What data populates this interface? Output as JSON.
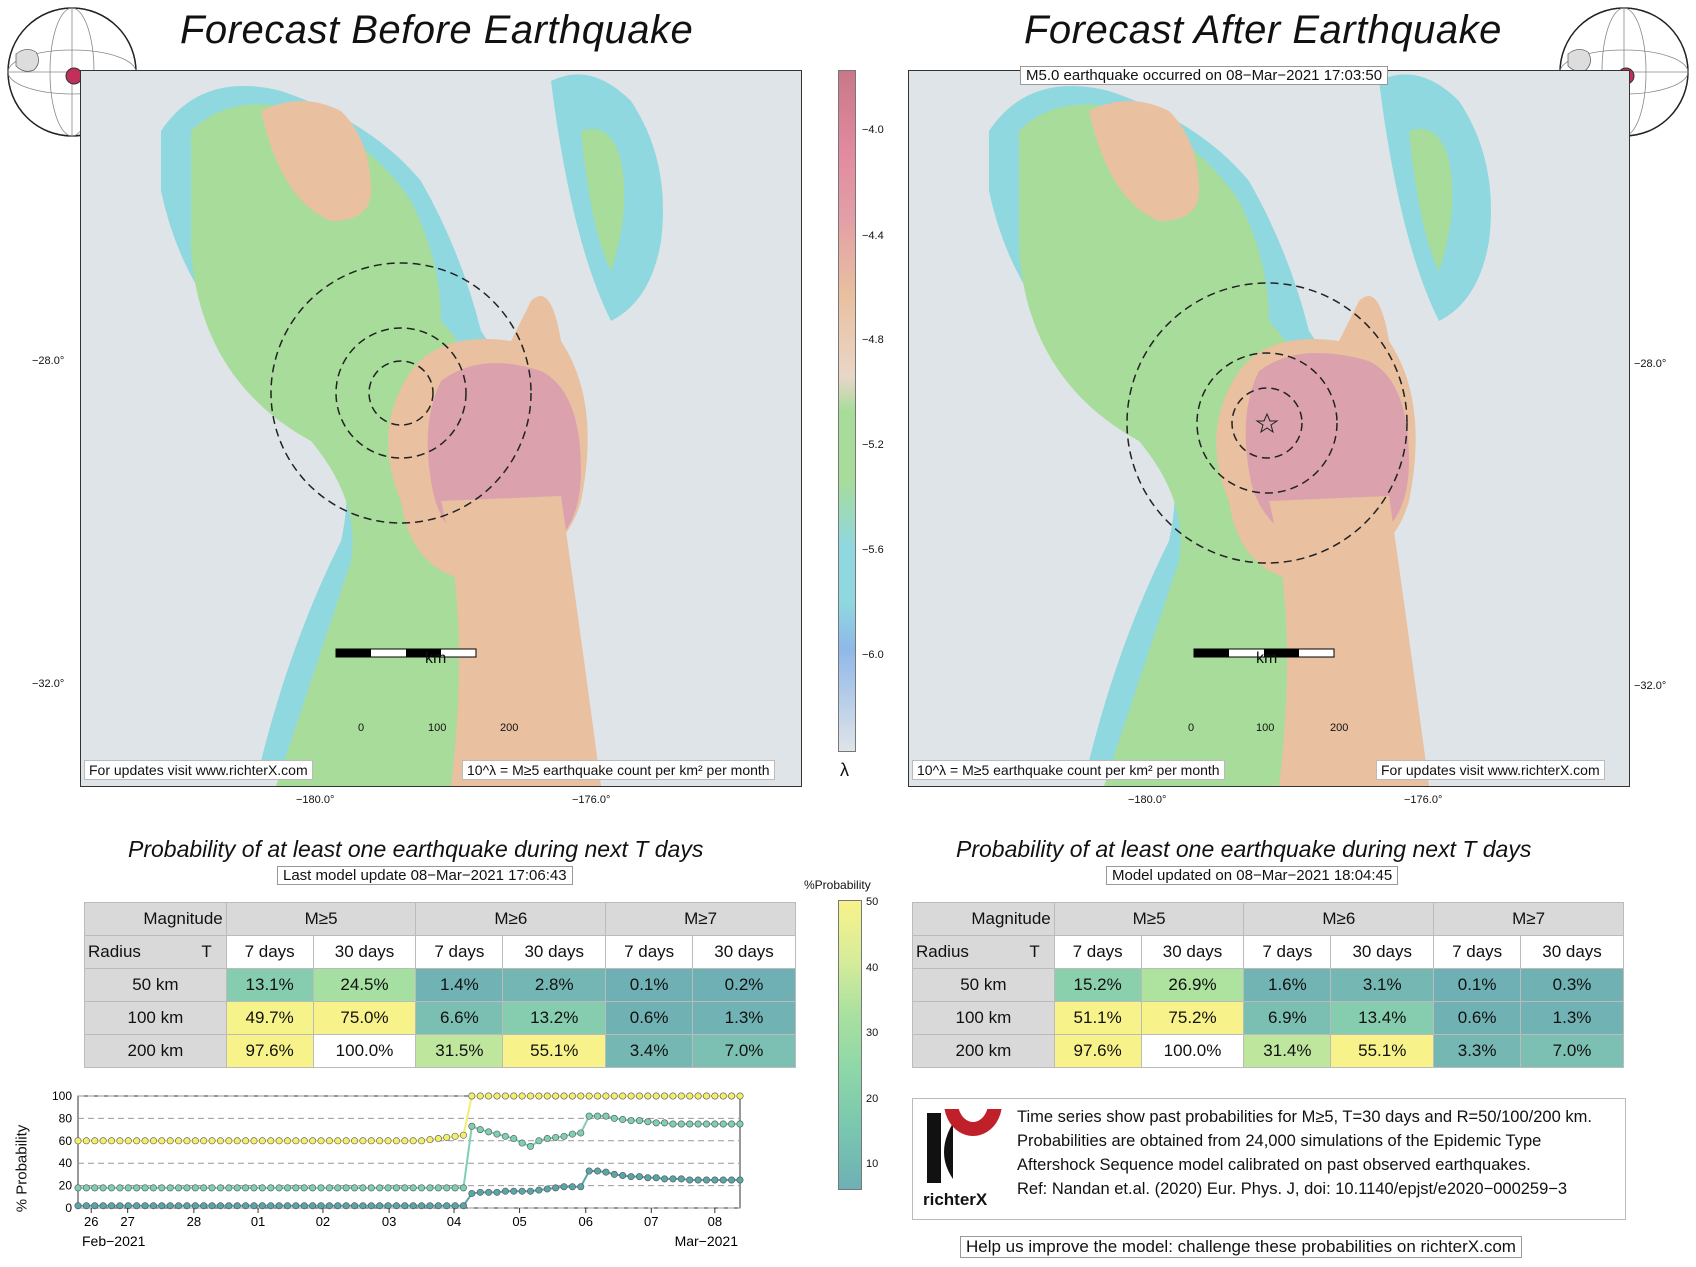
{
  "left_panel": {
    "title": "Forecast Before Earthquake",
    "footer_left": "For updates visit www.richterX.com",
    "footer_right": "10^λ = M≥5 earthquake count per km² per month",
    "scale_label": "km",
    "scale_ticks": [
      "0",
      "100",
      "200"
    ],
    "lat_ticks": [
      "−28.0°",
      "−32.0°"
    ],
    "lon_ticks": [
      "−180.0°",
      "−176.0°"
    ]
  },
  "right_panel": {
    "title": "Forecast After Earthquake",
    "event_label": "M5.0 earthquake occurred on 08−Mar−2021 17:03:50",
    "footer_left": "10^λ = M≥5 earthquake count per km² per month",
    "footer_right": "For updates visit www.richterX.com",
    "scale_label": "km",
    "scale_ticks": [
      "0",
      "100",
      "200"
    ],
    "lat_ticks": [
      "−28.0°",
      "−32.0°"
    ],
    "lon_ticks": [
      "−180.0°",
      "−176.0°"
    ]
  },
  "colorbar": {
    "ticks": [
      "−4.0",
      "−4.4",
      "−4.8",
      "−5.2",
      "−5.6",
      "−6.0"
    ],
    "label": "λ"
  },
  "table_left": {
    "title": "Probability of at least one earthquake during next T days",
    "update": "Last model update 08−Mar−2021 17:06:43",
    "corner_magnitude": "Magnitude",
    "corner_radius": "Radius",
    "corner_t": "T",
    "magnitudes": [
      "M≥5",
      "M≥6",
      "M≥7"
    ],
    "periods": [
      "7 days",
      "30 days",
      "7 days",
      "30 days",
      "7 days",
      "30 days"
    ],
    "radii": [
      "50 km",
      "100 km",
      "200 km"
    ],
    "rows": [
      [
        "13.1%",
        "24.5%",
        "1.4%",
        "2.8%",
        "0.1%",
        "0.2%"
      ],
      [
        "49.7%",
        "75.0%",
        "6.6%",
        "13.2%",
        "0.6%",
        "1.3%"
      ],
      [
        "97.6%",
        "100.0%",
        "31.5%",
        "55.1%",
        "3.4%",
        "7.0%"
      ]
    ]
  },
  "table_right": {
    "title": "Probability of at least one earthquake during next T days",
    "update": "Model updated on 08−Mar−2021 18:04:45",
    "corner_magnitude": "Magnitude",
    "corner_radius": "Radius",
    "corner_t": "T",
    "magnitudes": [
      "M≥5",
      "M≥6",
      "M≥7"
    ],
    "periods": [
      "7 days",
      "30 days",
      "7 days",
      "30 days",
      "7 days",
      "30 days"
    ],
    "radii": [
      "50 km",
      "100 km",
      "200 km"
    ],
    "rows": [
      [
        "15.2%",
        "26.9%",
        "1.6%",
        "3.1%",
        "0.1%",
        "0.3%"
      ],
      [
        "51.1%",
        "75.2%",
        "6.9%",
        "13.4%",
        "0.6%",
        "1.3%"
      ],
      [
        "97.6%",
        "100.0%",
        "31.4%",
        "55.1%",
        "3.3%",
        "7.0%"
      ]
    ]
  },
  "prob_colorbar": {
    "label": "%Probability",
    "ticks": [
      "50",
      "40",
      "30",
      "20",
      "10"
    ]
  },
  "chart_data": {
    "type": "line",
    "ylabel": "% Probability",
    "ylim": [
      0,
      100
    ],
    "yticks": [
      "100",
      "80",
      "60",
      "40",
      "20",
      "0"
    ],
    "xticks": [
      "26",
      "27",
      "28",
      "01",
      "02",
      "03",
      "04",
      "05",
      "06",
      "07",
      "08"
    ],
    "x_start_label": "Feb−2021",
    "x_end_label": "Mar−2021",
    "series": [
      {
        "color": "#f2ee70",
        "values": [
          60,
          60,
          60,
          60,
          60,
          60,
          60,
          60,
          60,
          60,
          60,
          60,
          60,
          60,
          60,
          60,
          60,
          60,
          60,
          60,
          60,
          60,
          60,
          60,
          60,
          60,
          60,
          60,
          60,
          60,
          60,
          60,
          60,
          60,
          60,
          60,
          60,
          60,
          60,
          60,
          60,
          60,
          61,
          62,
          63,
          64,
          65,
          100,
          100,
          100,
          100,
          100,
          100,
          100,
          100,
          100,
          100,
          100,
          100,
          100,
          100,
          100,
          100,
          100,
          100,
          100,
          100,
          100,
          100,
          100,
          100,
          100,
          100,
          100,
          100,
          100,
          100,
          100,
          100,
          100
        ]
      },
      {
        "color": "#7fcfb0",
        "values": [
          18,
          18,
          18,
          18,
          18,
          18,
          18,
          18,
          18,
          18,
          18,
          18,
          18,
          18,
          18,
          18,
          18,
          18,
          18,
          18,
          18,
          18,
          18,
          18,
          18,
          18,
          18,
          18,
          18,
          18,
          18,
          18,
          18,
          18,
          18,
          18,
          18,
          18,
          18,
          18,
          18,
          18,
          18,
          18,
          18,
          18,
          18,
          73,
          70,
          68,
          66,
          64,
          62,
          58,
          55,
          60,
          62,
          63,
          64,
          66,
          67,
          82,
          82,
          82,
          80,
          79,
          78,
          78,
          77,
          76,
          76,
          75,
          75,
          75,
          75,
          75,
          75,
          75,
          75,
          75
        ]
      },
      {
        "color": "#5aa5a8",
        "values": [
          2,
          2,
          2,
          2,
          2,
          2,
          2,
          2,
          2,
          2,
          2,
          2,
          2,
          2,
          2,
          2,
          2,
          2,
          2,
          2,
          2,
          2,
          2,
          2,
          2,
          2,
          2,
          2,
          2,
          2,
          2,
          2,
          2,
          2,
          2,
          2,
          2,
          2,
          2,
          2,
          2,
          2,
          2,
          2,
          2,
          2,
          2,
          13,
          14,
          14,
          14,
          15,
          15,
          15,
          15,
          16,
          17,
          18,
          19,
          19,
          19,
          33,
          33,
          32,
          30,
          29,
          28,
          28,
          27,
          27,
          26,
          26,
          26,
          25,
          25,
          25,
          25,
          25,
          25,
          25
        ]
      }
    ]
  },
  "info": {
    "lines": [
      "Time series show past probabilities for M≥5, T=30 days and R=50/100/200 km.",
      "Probabilities are obtained from 24,000 simulations of the Epidemic Type",
      "Aftershock Sequence model calibrated on past observed earthquakes.",
      "Ref: Nandan et.al. (2020) Eur. Phys. J, doi: 10.1140/epjst/e2020−000259−3"
    ],
    "logo_text": "richterX",
    "help": "Help us improve the model: challenge these probabilities on richterX.com"
  }
}
